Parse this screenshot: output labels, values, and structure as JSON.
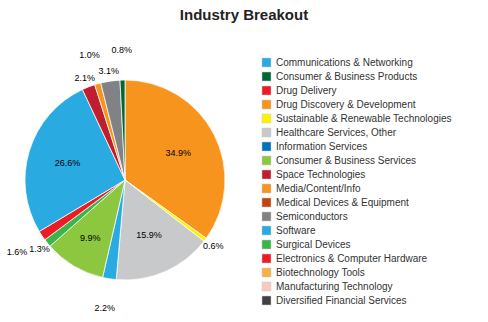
{
  "chart_data": {
    "type": "pie",
    "title": "Industry Breakout",
    "values": [
      34.9,
      0.6,
      15.9,
      2.2,
      9.9,
      1.3,
      1.6,
      26.6,
      2.1,
      1.0,
      3.1,
      0.8
    ],
    "value_labels": [
      "34.9%",
      "0.6%",
      "15.9%",
      "2.2%",
      "9.9%",
      "1.3%",
      "1.6%",
      "26.6%",
      "2.1%",
      "1.0%",
      "3.1%",
      "0.8%"
    ],
    "colors": [
      "#F7941D",
      "#FFF200",
      "#C8C9CB",
      "#29ABE2",
      "#8DC63F",
      "#39B54A",
      "#ED1C24",
      "#29ABE2",
      "#BE1E2D",
      "#F7941D",
      "#808285",
      "#006837"
    ],
    "data_labels": true,
    "legend": "right",
    "legend_entries": [
      {
        "label": "Communications & Networking",
        "color": "#29ABE2"
      },
      {
        "label": "Consumer & Business Products",
        "color": "#006837"
      },
      {
        "label": "Drug Delivery",
        "color": "#ED1C24"
      },
      {
        "label": "Drug Discovery & Development",
        "color": "#F7941D"
      },
      {
        "label": "Sustainable & Renewable Technologies",
        "color": "#FFF200"
      },
      {
        "label": "Healthcare Services, Other",
        "color": "#C8C9CB"
      },
      {
        "label": "Information Services",
        "color": "#0072BC"
      },
      {
        "label": "Consumer & Business Services",
        "color": "#8DC63F"
      },
      {
        "label": "Space Technologies",
        "color": "#BE1E2D"
      },
      {
        "label": "Media/Content/Info",
        "color": "#F7941D"
      },
      {
        "label": "Medical Devices & Equipment",
        "color": "#C1440E"
      },
      {
        "label": "Semiconductors",
        "color": "#808285"
      },
      {
        "label": "Software",
        "color": "#29ABE2"
      },
      {
        "label": "Surgical Devices",
        "color": "#39B54A"
      },
      {
        "label": "Electronics & Computer Hardware",
        "color": "#ED1C24"
      },
      {
        "label": "Biotechnology Tools",
        "color": "#FBB040"
      },
      {
        "label": "Manufacturing Technology",
        "color": "#F9C9C0"
      },
      {
        "label": "Diversified Financial Services",
        "color": "#414042"
      }
    ]
  }
}
